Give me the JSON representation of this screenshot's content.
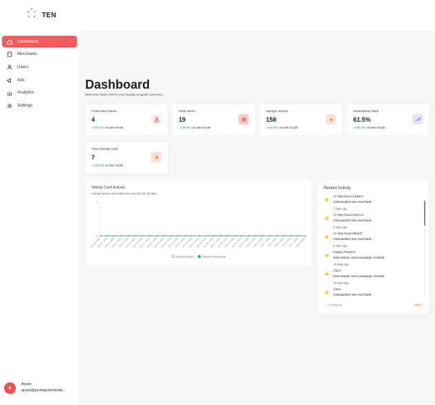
{
  "brand": {
    "name": "TEN"
  },
  "sidebar": {
    "items": [
      {
        "label": "Dashboard",
        "icon": "home-icon",
        "active": true
      },
      {
        "label": "Merchants",
        "icon": "store-icon",
        "active": false
      },
      {
        "label": "Users",
        "icon": "users-icon",
        "active": false
      },
      {
        "label": "Ads",
        "icon": "megaphone-icon",
        "active": false
      },
      {
        "label": "Analytics",
        "icon": "bar-chart-icon",
        "active": false
      },
      {
        "label": "Settings",
        "icon": "gear-icon",
        "active": false
      }
    ],
    "user": {
      "initial": "A",
      "name": "Aryan",
      "email": "aryan@prologictechnolo..."
    }
  },
  "header": {
    "title": "Dashboard",
    "subtitle": "Welcome back! Here's your loyalty program overview."
  },
  "stats": [
    {
      "label": "Active Merchants",
      "value": "4",
      "change": "+100.0%",
      "period": "vs last month",
      "icon": "store-icon",
      "icon_bg": "#fdecec",
      "icon_color": "#ef5050"
    },
    {
      "label": "Total Users",
      "value": "19",
      "change": "+100.0%",
      "period": "vs last month",
      "icon": "target-icon",
      "icon_bg": "#f9c9cc",
      "icon_color": "#ef5050"
    },
    {
      "label": "Stamps Issued",
      "value": "158",
      "change": "+100.0%",
      "period": "vs last month",
      "icon": "sparkle-icon",
      "icon_bg": "#fde0d8",
      "icon_color": "#ef6a40"
    },
    {
      "label": "Redemption Rate",
      "value": "61.5%",
      "change": "+100.0%",
      "period": "vs last month",
      "icon": "trend-icon",
      "icon_bg": "#ece0fb",
      "icon_color": "#9b59d0"
    },
    {
      "label": "Total Stamps card",
      "value": "7",
      "change": "+100.0%",
      "period": "vs last month",
      "icon": "sparkle-icon",
      "icon_bg": "#fde0d8",
      "icon_color": "#ef6a40"
    }
  ],
  "chart_panel": {
    "title": "Stamp Card Activity",
    "subtitle": "Stamps issued and redeemed over the last 30 days"
  },
  "chart_data": {
    "type": "line",
    "categories": [
      "Jan 10, 2026",
      "Jan 11, 2026",
      "Jan 12, 2026",
      "Jan 13, 2026",
      "Jan 14, 2026",
      "Jan 15, 2026",
      "Jan 16, 2026",
      "Jan 17, 2026",
      "Jan 18, 2026",
      "Jan 19, 2026",
      "Jan 20, 2026",
      "Jan 21, 2026",
      "Jan 22, 2026",
      "Jan 23, 2026",
      "Jan 24, 2026",
      "Jan 25, 2026",
      "Jan 26, 2026",
      "Jan 27, 2026",
      "Jan 28, 2026",
      "Jan 29, 2026",
      "Jan 30, 2026",
      "Jan 31, 2026",
      "Feb 1, 2026",
      "Feb 2, 2026",
      "Feb 3, 2026",
      "Feb 4, 2026",
      "Feb 5, 2026",
      "Feb 6, 2026",
      "Feb 7, 2026",
      "Feb 8, 2026"
    ],
    "series": [
      {
        "name": "Stamps Issued",
        "color": "#ef5a5a",
        "values": [
          0,
          0,
          0,
          0,
          0,
          0,
          0,
          0,
          0,
          0,
          0,
          0,
          0,
          0,
          0,
          0,
          0,
          0,
          0,
          0,
          0,
          0,
          0,
          0,
          0,
          0,
          0,
          0,
          0,
          0
        ]
      },
      {
        "name": "Stamps Redeemed",
        "color": "#1aa99a",
        "values": [
          0,
          0,
          0,
          0,
          0,
          0,
          0,
          0,
          0,
          0,
          0,
          0,
          0,
          0,
          0,
          0,
          0,
          0,
          0,
          0,
          0,
          0,
          0,
          0,
          0,
          0,
          0,
          0,
          0,
          0
        ]
      }
    ],
    "yticks": [
      "1",
      "0"
    ],
    "ylim": [
      0,
      1
    ],
    "legend": "bottom"
  },
  "activity": {
    "title": "Recent Activity",
    "items": [
      {
        "name": "LT-Merchant-14a6c2",
        "desc": "Onboarded new merchant",
        "time": "7 days ago"
      },
      {
        "name": "LT-Merchant-0551c3",
        "desc": "Onboarded new merchant",
        "time": "8 days ago"
      },
      {
        "name": "LT-Merchant-8b4ef7",
        "desc": "Onboarded new merchant",
        "time": "8 days ago"
      },
      {
        "name": "Happy Flowers",
        "desc": "New stamp card campaign created",
        "time": "10 days ago"
      },
      {
        "name": "cfaco",
        "desc": "New stamp card campaign created",
        "time": "10 days ago"
      },
      {
        "name": "cfaco",
        "desc": "Onboarded new merchant",
        "time": ""
      }
    ],
    "prev_label": "Previous",
    "next_label": "Next"
  }
}
